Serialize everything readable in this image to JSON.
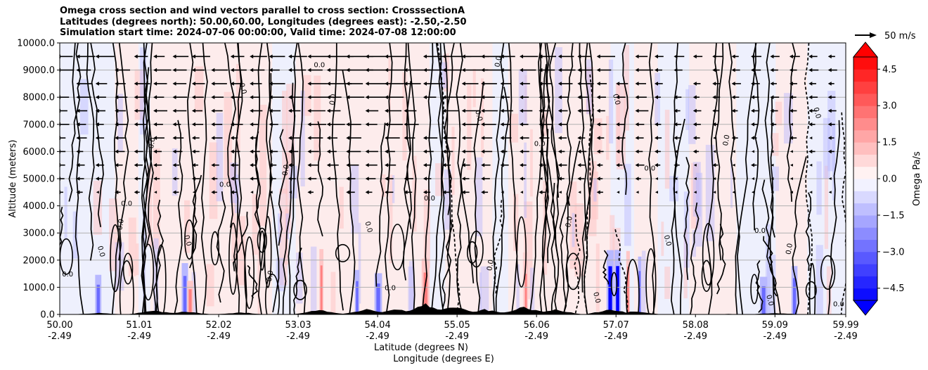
{
  "chart_data": {
    "type": "heatmap",
    "title_lines": [
      "Omega cross section and wind vectors parallel to cross section: CrosssectionA",
      "Latitudes (degrees north): 50.00,60.00, Longitudes (degrees east): -2.50,-2.50",
      "Simulation start time: 2024-07-06 00:00:00, Valid time: 2024-07-08 12:00:00"
    ],
    "ylabel": "Altitude (meters)",
    "xlabel_lat": "Latitude (degrees N)",
    "xlabel_lon": "Longitude (degrees E)",
    "y_ticks": [
      0,
      1000,
      2000,
      3000,
      4000,
      5000,
      6000,
      7000,
      8000,
      9000,
      10000
    ],
    "y_tick_labels": [
      "0.0",
      "1000.0",
      "2000.0",
      "3000.0",
      "4000.0",
      "5000.0",
      "6000.0",
      "7000.0",
      "8000.0",
      "9000.0",
      "10000.0"
    ],
    "ylim": [
      0,
      10000
    ],
    "xlim": [
      50.0,
      59.99
    ],
    "x_ticks": [
      50.0,
      51.01,
      52.02,
      53.03,
      54.04,
      55.05,
      56.06,
      57.07,
      58.08,
      59.09,
      59.99
    ],
    "x_tick_lat_labels": [
      "50.00",
      "51.01",
      "52.02",
      "53.03",
      "54.04",
      "55.05",
      "56.06",
      "57.07",
      "58.08",
      "59.09",
      "59.99"
    ],
    "x_tick_lon_labels": [
      "-2.49",
      "-2.49",
      "-2.49",
      "-2.49",
      "-2.49",
      "-2.49",
      "-2.49",
      "-2.49",
      "-2.49",
      "-2.49",
      "-2.49"
    ],
    "colorbar": {
      "label": "Omega Pa/s",
      "ticks": [
        -4.5,
        -3.0,
        -1.5,
        0.0,
        1.5,
        3.0,
        4.5
      ],
      "tick_labels": [
        "−4.5",
        "−3.0",
        "−1.5",
        "0.0",
        "1.5",
        "3.0",
        "4.5"
      ],
      "range": [
        -5.0,
        5.0
      ],
      "levels": 20,
      "extend": "both",
      "cmap": "bwr"
    },
    "quiver_key": {
      "label": "50 m/s",
      "value": 50
    },
    "contour_label": "0.0",
    "contour_label_positions": [
      [
        50.1,
        1400
      ],
      [
        50.5,
        2300
      ],
      [
        50.8,
        3300
      ],
      [
        50.85,
        4000
      ],
      [
        51.2,
        6300
      ],
      [
        51.6,
        2700
      ],
      [
        52.1,
        4700
      ],
      [
        52.3,
        8300
      ],
      [
        52.9,
        5300
      ],
      [
        53.3,
        9100
      ],
      [
        53.5,
        7900
      ],
      [
        53.9,
        3200
      ],
      [
        54.7,
        4200
      ],
      [
        55.3,
        7300
      ],
      [
        55.6,
        9300
      ],
      [
        56.1,
        6200
      ],
      [
        56.5,
        3400
      ],
      [
        57.05,
        7900
      ],
      [
        57.5,
        5300
      ],
      [
        57.7,
        2700
      ],
      [
        58.5,
        6400
      ],
      [
        58.9,
        3000
      ],
      [
        59.3,
        2400
      ],
      [
        59.6,
        7400
      ],
      [
        59.9,
        300
      ],
      [
        59.0,
        500
      ],
      [
        52.7,
        1400
      ],
      [
        54.2,
        900
      ],
      [
        55.5,
        1800
      ],
      [
        56.8,
        600
      ]
    ],
    "colors": {
      "positive_light": "#fdecec",
      "positive_mid": "#ffc7c7",
      "negative_light": "#eef0fd",
      "negative_mid": "#b8b8ff",
      "negative_strong": "#0000ff",
      "positive_strong": "#ff0000",
      "contour": "#000000",
      "terrain": "#000000",
      "grid": "#b0b0b0"
    }
  }
}
